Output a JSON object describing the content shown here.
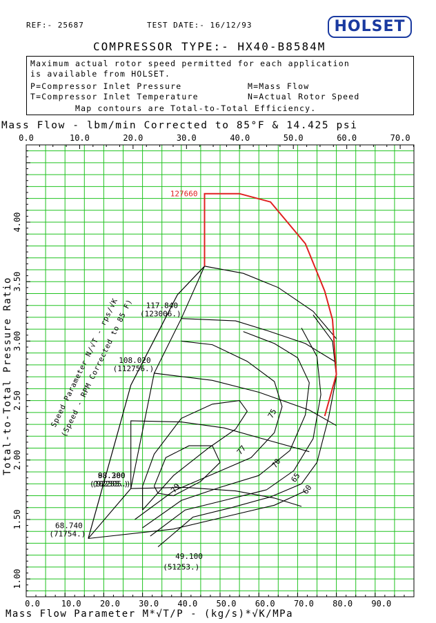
{
  "header": {
    "ref": "REF:- 25687",
    "test_date": "TEST DATE:- 16/12/93",
    "logo": "HOLSET",
    "compressor_type": "COMPRESSOR TYPE:- HX40-B8584M"
  },
  "notes": {
    "line1": "Maximum actual rotor speed permitted for each application",
    "line2": "is available from HOLSET.",
    "p_def": "P=Compressor Inlet Pressure",
    "m_def": "M=Mass Flow",
    "t_def": "T=Compressor Inlet Temperature",
    "n_def": "N=Actual Rotor Speed",
    "line5": "Map contours are Total-to-Total Efficiency."
  },
  "chart_data": {
    "type": "line",
    "title": "COMPRESSOR TYPE:- HX40-B8584M",
    "top_axis_label": "Mass Flow - lbm/min Corrected to 85°F & 14.425 psi",
    "xlabel": "Mass Flow Parameter  M*√T/P  -  (kg/s)*√K/MPa",
    "ylabel": "Total-to-Total Pressure Ratio",
    "speed_parameter_label": "Speed Parameter  N/√T  -  rps/√K",
    "speed_parameter_sublabel": "(Speed - RPM Corrected to 85 F)",
    "xlim": [
      0,
      100
    ],
    "ylim": [
      0.85,
      4.65
    ],
    "top_xlim": [
      0,
      72.57
    ],
    "x_ticks": [
      "0.0",
      "10.0",
      "20.0",
      "30.0",
      "40.0",
      "50.0",
      "60.0",
      "70.0",
      "80.0",
      "90.0"
    ],
    "x_tick_values": [
      0,
      10,
      20,
      30,
      40,
      50,
      60,
      70,
      80,
      90
    ],
    "top_ticks": [
      "0.0",
      "10.0",
      "20.0",
      "30.0",
      "40.0",
      "50.0",
      "60.0",
      "70.0"
    ],
    "top_tick_values": [
      0,
      10,
      20,
      30,
      40,
      50,
      60,
      70
    ],
    "y_ticks": [
      "1.00",
      "1.50",
      "2.00",
      "2.50",
      "3.00",
      "3.50",
      "4.00"
    ],
    "y_tick_values": [
      1.0,
      1.5,
      2.0,
      2.5,
      3.0,
      3.5,
      4.0
    ],
    "grid": true,
    "colors": {
      "grid": "#1fc21f",
      "lines": "#000000",
      "max_speed": "#e02020"
    },
    "speed_lines": [
      {
        "label": "49.100",
        "rpm": "(51253.)",
        "points": [
          [
            16,
            1.34
          ],
          [
            38,
            1.42
          ],
          [
            51,
            1.52
          ],
          [
            64,
            1.62
          ],
          [
            72,
            1.74
          ]
        ]
      },
      {
        "label": "68.740",
        "rpm": "(71754.)",
        "points": [
          [
            16,
            1.34
          ],
          [
            27,
            1.76
          ],
          [
            41,
            1.77
          ],
          [
            54,
            1.74
          ],
          [
            64,
            1.68
          ],
          [
            71,
            1.61
          ]
        ]
      },
      {
        "label": "88.380",
        "rpm": "(92255.)",
        "points": [
          [
            27,
            1.76
          ],
          [
            27,
            2.33
          ],
          [
            40,
            2.32
          ],
          [
            51,
            2.27
          ],
          [
            62,
            2.17
          ],
          [
            73,
            2.07
          ]
        ]
      },
      {
        "label": "98.200",
        "rpm": "(102505.)",
        "points": [
          [
            27,
            1.76
          ],
          [
            33,
            2.73
          ],
          [
            48,
            2.67
          ],
          [
            60,
            2.57
          ],
          [
            73,
            2.42
          ],
          [
            80,
            2.29
          ]
        ]
      },
      {
        "label": "108.020",
        "rpm": "(112756.)",
        "points": [
          [
            33,
            2.73
          ],
          [
            40,
            3.19
          ],
          [
            54,
            3.17
          ],
          [
            62,
            3.09
          ],
          [
            72,
            2.98
          ],
          [
            80,
            2.82
          ]
        ]
      },
      {
        "label": "117.840",
        "rpm": "(123006.)",
        "points": [
          [
            40,
            3.19
          ],
          [
            46,
            3.63
          ],
          [
            56,
            3.57
          ],
          [
            65,
            3.45
          ],
          [
            74,
            3.25
          ],
          [
            80,
            3.02
          ]
        ]
      }
    ],
    "max_speed_line": {
      "label": "127660",
      "points": [
        [
          46,
          3.63
        ],
        [
          46,
          4.24
        ],
        [
          55,
          4.24
        ],
        [
          63,
          4.17
        ],
        [
          72,
          3.82
        ],
        [
          77,
          3.42
        ],
        [
          79,
          3.18
        ],
        [
          80,
          2.72
        ],
        [
          77,
          2.37
        ]
      ]
    },
    "surge_line": [
      [
        16,
        1.34
      ],
      [
        23,
        2.16
      ],
      [
        27,
        2.63
      ],
      [
        33,
        3.01
      ],
      [
        39,
        3.39
      ],
      [
        46,
        3.63
      ]
    ],
    "efficiency_contours": [
      {
        "label": "60",
        "points": [
          [
            34,
            1.27
          ],
          [
            43,
            1.52
          ],
          [
            53,
            1.6
          ],
          [
            63,
            1.69
          ],
          [
            71,
            1.8
          ],
          [
            75,
            1.98
          ],
          [
            78,
            2.36
          ],
          [
            80,
            2.7
          ],
          [
            79,
            3.0
          ],
          [
            74,
            3.22
          ]
        ]
      },
      {
        "label": "65",
        "points": [
          [
            32,
            1.36
          ],
          [
            41,
            1.58
          ],
          [
            51,
            1.66
          ],
          [
            62,
            1.75
          ],
          [
            69,
            1.91
          ],
          [
            74,
            2.18
          ],
          [
            76,
            2.55
          ],
          [
            75,
            2.87
          ],
          [
            71,
            3.11
          ]
        ]
      },
      {
        "label": "70",
        "points": [
          [
            30,
            1.43
          ],
          [
            40,
            1.66
          ],
          [
            50,
            1.77
          ],
          [
            60,
            1.87
          ],
          [
            68,
            2.08
          ],
          [
            72,
            2.38
          ],
          [
            73,
            2.65
          ],
          [
            70,
            2.86
          ],
          [
            64,
            2.98
          ],
          [
            56,
            3.08
          ]
        ]
      },
      {
        "label": "75",
        "points": [
          [
            28,
            1.5
          ],
          [
            38,
            1.74
          ],
          [
            48,
            1.88
          ],
          [
            58,
            2.02
          ],
          [
            64,
            2.23
          ],
          [
            66,
            2.45
          ],
          [
            64,
            2.66
          ],
          [
            57,
            2.83
          ],
          [
            48,
            2.97
          ],
          [
            40,
            3.0
          ]
        ]
      },
      {
        "label": "77",
        "points": [
          [
            30,
            1.58
          ],
          [
            38,
            1.87
          ],
          [
            47,
            2.1
          ],
          [
            54,
            2.26
          ],
          [
            57,
            2.41
          ],
          [
            55,
            2.5
          ],
          [
            48,
            2.47
          ],
          [
            40,
            2.35
          ],
          [
            33,
            2.05
          ],
          [
            30,
            1.78
          ],
          [
            30,
            1.58
          ]
        ]
      },
      {
        "label": "79",
        "points": [
          [
            33,
            1.78
          ],
          [
            36,
            2.02
          ],
          [
            42,
            2.12
          ],
          [
            48,
            2.12
          ],
          [
            50,
            1.98
          ],
          [
            45,
            1.82
          ],
          [
            38,
            1.7
          ],
          [
            34,
            1.72
          ],
          [
            33,
            1.78
          ]
        ]
      }
    ]
  }
}
